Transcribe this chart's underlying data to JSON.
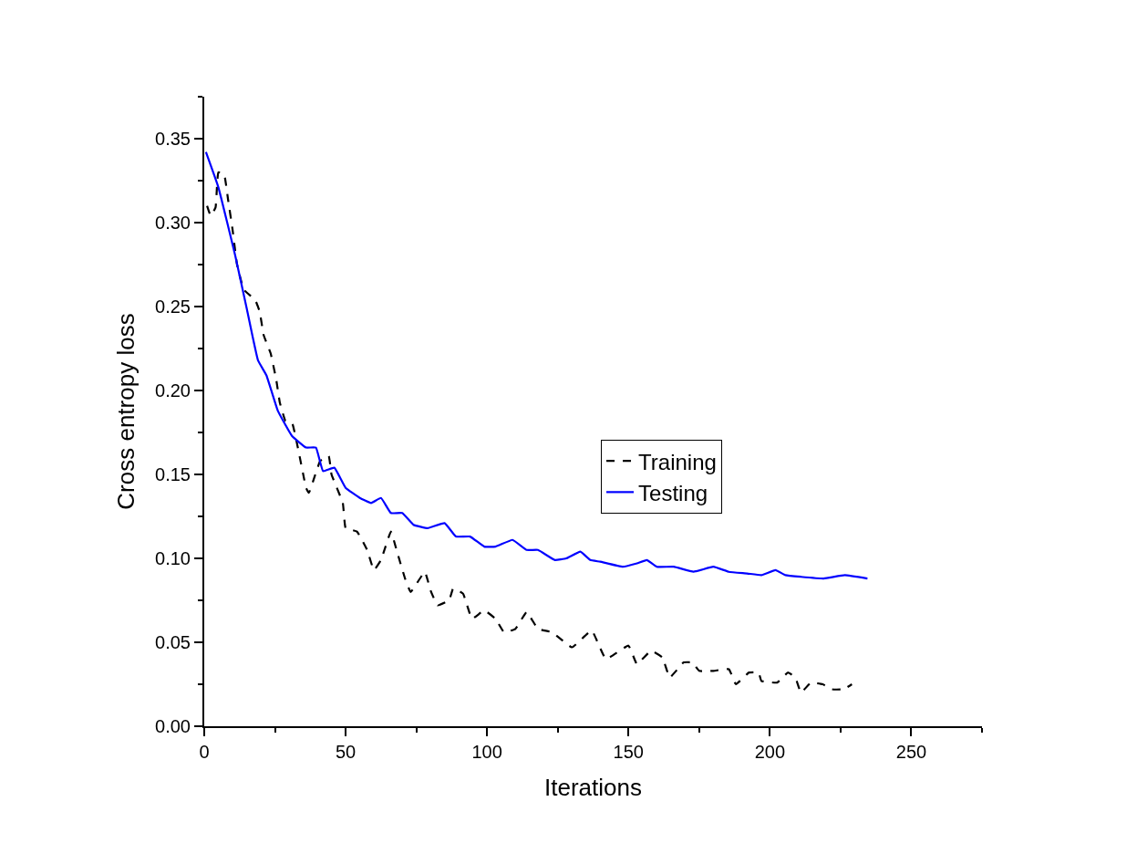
{
  "chart_data": {
    "type": "line",
    "xlabel": "Iterations",
    "ylabel": "Cross entropy loss",
    "xlim": [
      0,
      275
    ],
    "xticks": [
      0,
      50,
      100,
      150,
      200,
      250
    ],
    "ylim": [
      0,
      0.375
    ],
    "yticks": [
      {
        "value": 0,
        "label": "0.00"
      },
      {
        "value": 0.05,
        "label": "0.05"
      },
      {
        "value": 0.1,
        "label": "0.10"
      },
      {
        "value": 0.15,
        "label": "0.15"
      },
      {
        "value": 0.2,
        "label": "0.20"
      },
      {
        "value": 0.25,
        "label": "0.25"
      },
      {
        "value": 0.3,
        "label": "0.30"
      },
      {
        "value": 0.35,
        "label": "0.35"
      }
    ],
    "legend": "right",
    "marker": "none",
    "series": [
      {
        "name": "Training",
        "color": "#000000",
        "line_style": "dashed",
        "x": [
          1,
          2.3,
          4,
          5,
          7,
          8.4,
          10,
          11.6,
          14,
          18,
          19.6,
          21,
          23.5,
          25.5,
          26.7,
          28.7,
          31,
          36,
          37,
          41,
          44,
          45,
          49,
          50,
          54,
          57.6,
          60,
          62.5,
          66,
          68,
          71,
          73,
          78,
          80,
          82.5,
          86.6,
          88,
          91.5,
          94.7,
          99,
          103,
          106,
          110,
          114,
          118,
          123,
          130,
          137,
          142,
          150,
          153,
          158,
          162,
          164.6,
          169.5,
          172.6,
          175,
          180,
          185.5,
          188,
          192.6,
          196,
          197,
          202.6,
          206.4,
          209,
          211,
          214.5,
          218.7,
          222,
          226,
          229
        ],
        "values": [
          0.31,
          0.304,
          0.309,
          0.33,
          0.329,
          0.314,
          0.296,
          0.275,
          0.26,
          0.254,
          0.247,
          0.233,
          0.222,
          0.206,
          0.193,
          0.182,
          0.181,
          0.142,
          0.139,
          0.158,
          0.161,
          0.15,
          0.133,
          0.118,
          0.116,
          0.105,
          0.093,
          0.099,
          0.116,
          0.105,
          0.088,
          0.08,
          0.092,
          0.081,
          0.072,
          0.075,
          0.082,
          0.079,
          0.064,
          0.069,
          0.064,
          0.056,
          0.058,
          0.068,
          0.058,
          0.056,
          0.047,
          0.057,
          0.04,
          0.048,
          0.037,
          0.045,
          0.041,
          0.029,
          0.038,
          0.038,
          0.033,
          0.033,
          0.034,
          0.025,
          0.032,
          0.032,
          0.027,
          0.026,
          0.032,
          0.029,
          0.02,
          0.026,
          0.025,
          0.022,
          0.022,
          0.025
        ]
      },
      {
        "name": "Testing",
        "color": "#0000ff",
        "line_style": "solid",
        "x": [
          0.6,
          5,
          11,
          15,
          19,
          22,
          26,
          31,
          36,
          39.5,
          42,
          46,
          50,
          55,
          59,
          62.5,
          66,
          70,
          74,
          79,
          85,
          89,
          94,
          99,
          103,
          109,
          114,
          118,
          124,
          128,
          133,
          136.5,
          140,
          148,
          153,
          156.5,
          160,
          166,
          173,
          180,
          185.5,
          192,
          197,
          202,
          205.5,
          211,
          219,
          226.5,
          234.5
        ],
        "values": [
          0.342,
          0.321,
          0.28,
          0.249,
          0.218,
          0.209,
          0.188,
          0.173,
          0.166,
          0.166,
          0.152,
          0.154,
          0.142,
          0.136,
          0.133,
          0.136,
          0.127,
          0.127,
          0.12,
          0.118,
          0.121,
          0.113,
          0.113,
          0.107,
          0.107,
          0.111,
          0.105,
          0.105,
          0.099,
          0.1,
          0.104,
          0.099,
          0.098,
          0.095,
          0.097,
          0.099,
          0.095,
          0.095,
          0.092,
          0.095,
          0.092,
          0.091,
          0.09,
          0.093,
          0.09,
          0.089,
          0.088,
          0.09,
          0.088
        ]
      }
    ]
  }
}
